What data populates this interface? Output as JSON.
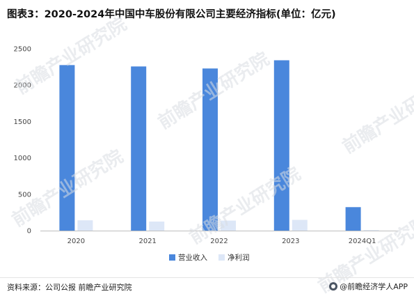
{
  "title": "图表3：2020-2024年中国中车股份有限公司主要经济指标(单位：亿元)",
  "watermark_text": "前瞻产业研究院",
  "footer": {
    "source": "资料来源：公司公报 前瞻产业研究院",
    "brand": "@前瞻经济学人APP"
  },
  "colors": {
    "revenue": "#4a87dc",
    "profit": "#dde7f7",
    "axis": "#bfbfbf",
    "grid": "#ededed"
  },
  "chart_data": {
    "type": "bar",
    "title": "图表3：2020-2024年中国中车股份有限公司主要经济指标(单位：亿元)",
    "categories": [
      "2020",
      "2021",
      "2022",
      "2023",
      "2024Q1"
    ],
    "series": [
      {
        "name": "营业收入",
        "values": [
          2276,
          2257,
          2229,
          2342,
          323
        ]
      },
      {
        "name": "净利润",
        "values": [
          142,
          125,
          138,
          148,
          8
        ]
      }
    ],
    "yticks": [
      0,
      500,
      1000,
      1500,
      2000,
      2500
    ],
    "ylim": [
      0,
      2500
    ],
    "xlabel": "",
    "ylabel": "",
    "grid": false,
    "legend": "bottom"
  }
}
